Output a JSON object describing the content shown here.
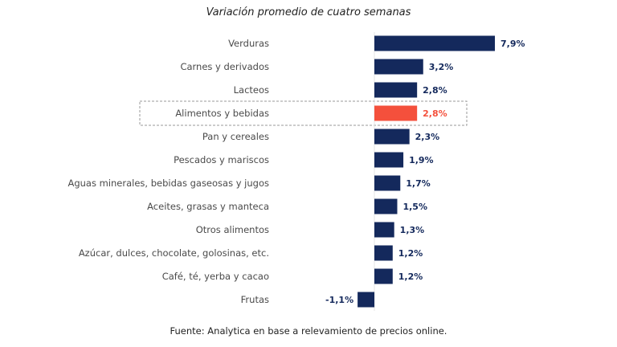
{
  "chart_data": {
    "type": "bar",
    "orientation": "horizontal",
    "title": "Variación promedio de cuatro semanas",
    "xlabel": "",
    "ylabel": "",
    "categories": [
      "Verduras",
      "Carnes y derivados",
      "Lacteos",
      "Alimentos y bebidas",
      "Pan y cereales",
      "Pescados y mariscos",
      "Aguas minerales, bebidas gaseosas y jugos",
      "Aceites, grasas y manteca",
      "Otros alimentos",
      "Azúcar, dulces, chocolate, golosinas, etc.",
      "Café, té, yerba y cacao",
      "Frutas"
    ],
    "values": [
      7.9,
      3.2,
      2.8,
      2.8,
      2.3,
      1.9,
      1.7,
      1.5,
      1.3,
      1.2,
      1.2,
      -1.1
    ],
    "value_labels": [
      "7,9%",
      "3,2%",
      "2,8%",
      "2,8%",
      "2,3%",
      "1,9%",
      "1,7%",
      "1,5%",
      "1,3%",
      "1,2%",
      "1,2%",
      "-1,1%"
    ],
    "highlight_category": "Alimentos y bebidas",
    "xlim": [
      -1.1,
      7.9
    ],
    "grid": false,
    "legend": "none",
    "colors": {
      "default_bar": "#14295c",
      "highlight_bar": "#f4503c",
      "default_value_label": "#14295c",
      "highlight_value_label": "#f4503c",
      "highlight_box_border": "#9a9a9a"
    },
    "source_note": "Fuente: Analytica en base a relevamiento de precios online."
  }
}
